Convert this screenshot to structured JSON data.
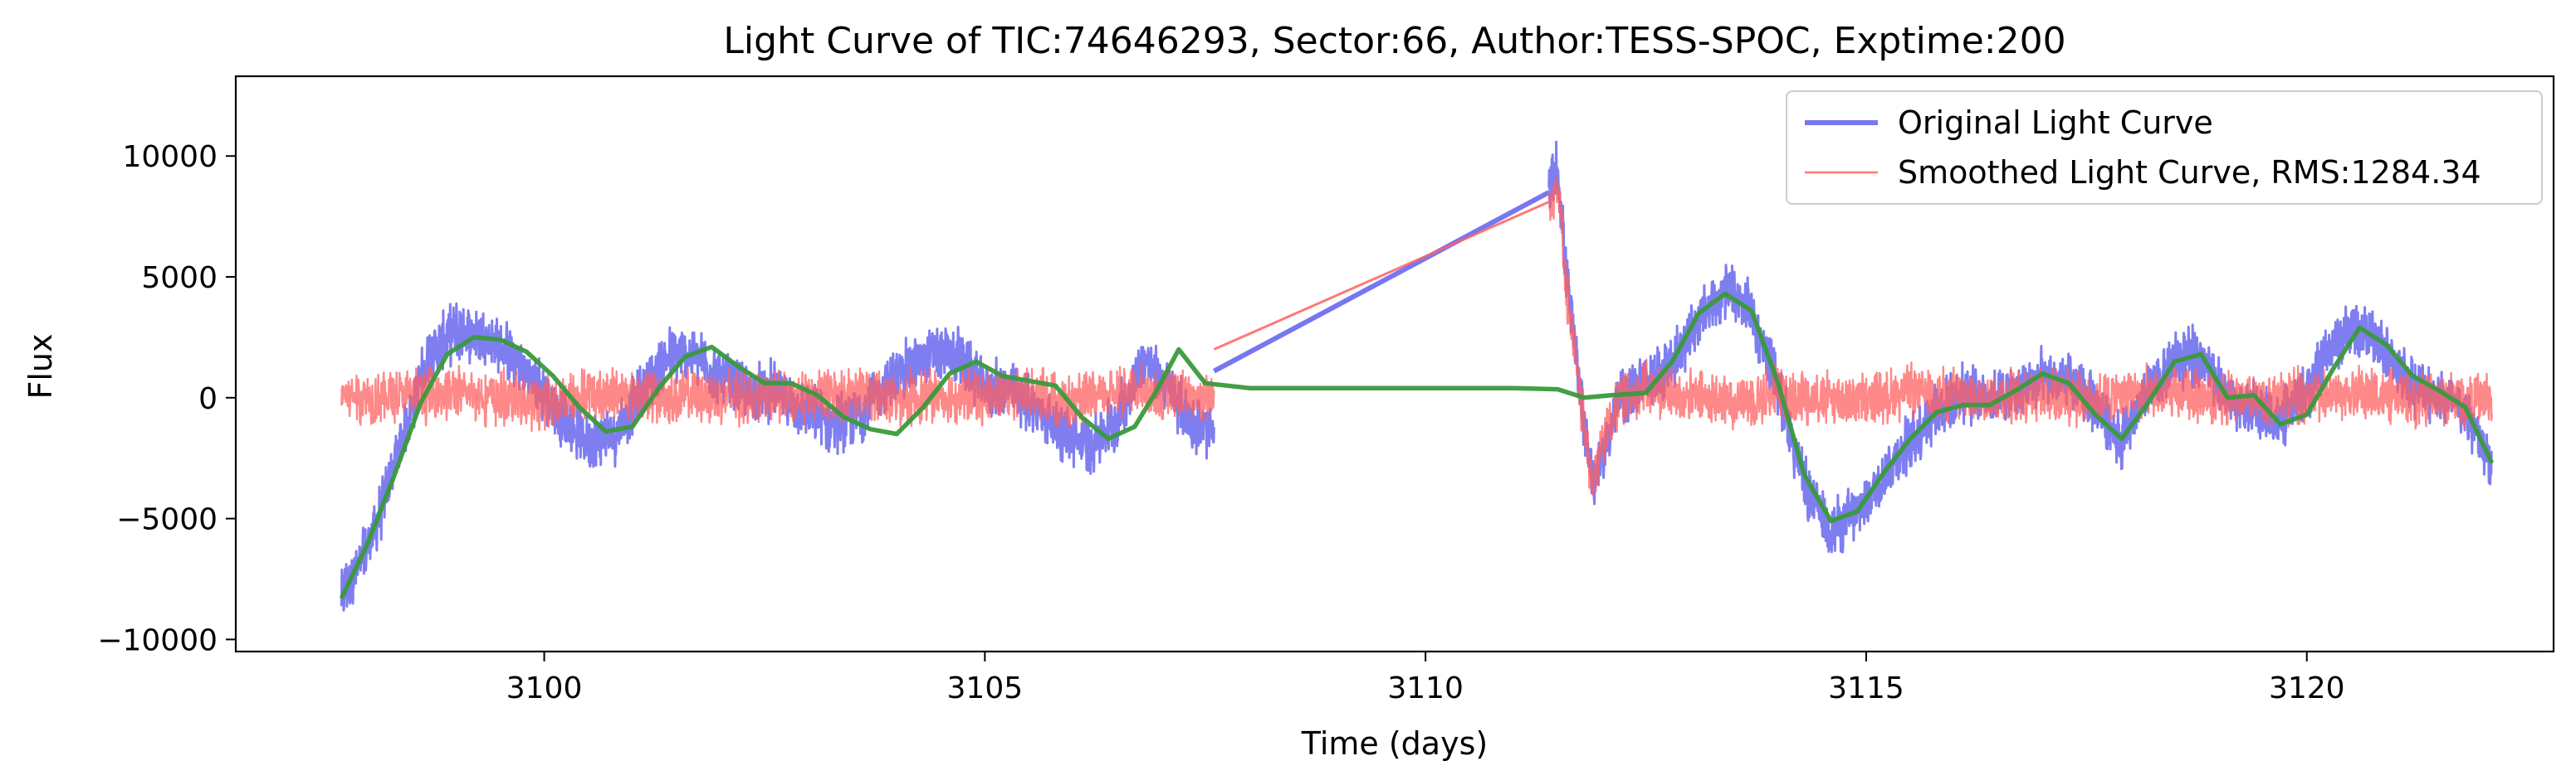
{
  "chart_data": {
    "type": "line",
    "title": "Light Curve of TIC:74646293, Sector:66, Author:TESS-SPOC, Exptime:200",
    "xlabel": "Time (days)",
    "ylabel": "Flux",
    "xlim": [
      3096.5,
      3122.8
    ],
    "ylim": [
      -10500,
      13300
    ],
    "x_ticks": [
      3100,
      3105,
      3110,
      3115,
      3120
    ],
    "x_tick_labels": [
      "3100",
      "3105",
      "3110",
      "3115",
      "3120"
    ],
    "y_ticks": [
      -10000,
      -5000,
      0,
      5000,
      10000
    ],
    "y_tick_labels": [
      "−10000",
      "−5000",
      "0",
      "5000",
      "10000"
    ],
    "grid": false,
    "legend_position": "top-right",
    "series": [
      {
        "name": "Original Light Curve",
        "color": "#7070f0",
        "style": "noisy",
        "noise": 1400,
        "x": [
          3097.7,
          3097.9,
          3098.1,
          3098.4,
          3098.7,
          3099.0,
          3099.3,
          3099.6,
          3099.9,
          3100.2,
          3100.5,
          3100.8,
          3101.1,
          3101.4,
          3101.7,
          3102.0,
          3102.3,
          3102.6,
          3102.9,
          3103.2,
          3103.5,
          3103.8,
          3104.1,
          3104.4,
          3104.7,
          3105.0,
          3105.3,
          3105.6,
          3105.9,
          3106.2,
          3106.5,
          3106.8,
          3107.1,
          3107.4,
          3107.6,
          null,
          3111.4,
          3111.5,
          3111.6,
          3111.7,
          3111.8,
          3111.9,
          3112.0,
          3112.2,
          3112.5,
          3112.8,
          3113.1,
          3113.4,
          3113.7,
          3114.0,
          3114.3,
          3114.6,
          3114.9,
          3115.2,
          3115.5,
          3115.8,
          3116.1,
          3116.4,
          3116.7,
          3117.0,
          3117.3,
          3117.6,
          3117.9,
          3118.2,
          3118.5,
          3118.8,
          3119.1,
          3119.4,
          3119.7,
          3120.0,
          3120.3,
          3120.6,
          3120.9,
          3121.2,
          3121.5,
          3121.8,
          3122.1
        ],
        "y": [
          -8200,
          -7000,
          -5200,
          -1500,
          1800,
          2800,
          2600,
          1800,
          600,
          -800,
          -1800,
          -1500,
          200,
          1700,
          1800,
          800,
          200,
          300,
          -400,
          -1000,
          -900,
          200,
          1200,
          1800,
          1700,
          400,
          300,
          -500,
          -1500,
          -2000,
          -900,
          1600,
          300,
          -1200,
          -1500,
          null,
          8500,
          9500,
          5000,
          2000,
          -1000,
          -3500,
          -2500,
          0,
          600,
          1500,
          3200,
          4400,
          3500,
          500,
          -3600,
          -5400,
          -4800,
          -3200,
          -1800,
          -500,
          200,
          0,
          300,
          800,
          600,
          -300,
          -1800,
          200,
          1500,
          1700,
          0,
          -500,
          -1000,
          300,
          2200,
          3000,
          1900,
          500,
          100,
          -600,
          -2900
        ]
      },
      {
        "name": "Smoothed Light Curve, RMS:1284.34",
        "color": "#ff6060",
        "style": "noisy",
        "noise": 1300,
        "x": [
          3097.7,
          3098.0,
          3098.5,
          3099.0,
          3099.5,
          3100.0,
          3100.5,
          3101.0,
          3101.5,
          3102.0,
          3102.5,
          3103.0,
          3103.5,
          3104.0,
          3104.5,
          3105.0,
          3105.5,
          3106.0,
          3106.5,
          3107.0,
          3107.6,
          null,
          3111.4,
          3111.5,
          3111.6,
          3111.7,
          3111.8,
          3111.9,
          3112.0,
          3112.2,
          3112.5,
          3113.0,
          3113.5,
          3114.0,
          3114.5,
          3115.0,
          3115.5,
          3116.0,
          3116.5,
          3117.0,
          3117.5,
          3118.0,
          3118.5,
          3119.0,
          3119.5,
          3120.0,
          3120.5,
          3121.0,
          3121.5,
          3122.1
        ],
        "y": [
          200,
          0,
          100,
          200,
          0,
          -200,
          100,
          200,
          0,
          100,
          -100,
          0,
          200,
          0,
          100,
          0,
          200,
          -300,
          300,
          200,
          0,
          null,
          8100,
          9000,
          4500,
          1500,
          -1200,
          -3500,
          -2000,
          0,
          300,
          0,
          -200,
          200,
          0,
          -100,
          300,
          100,
          0,
          200,
          -100,
          200,
          100,
          0,
          -200,
          100,
          200,
          0,
          -100,
          0
        ]
      },
      {
        "name": "",
        "color": "#3a9a3a",
        "style": "smooth",
        "x": [
          3097.7,
          3098.0,
          3098.3,
          3098.6,
          3098.9,
          3099.2,
          3099.5,
          3099.8,
          3100.1,
          3100.4,
          3100.7,
          3101.0,
          3101.3,
          3101.6,
          3101.9,
          3102.2,
          3102.5,
          3102.8,
          3103.1,
          3103.4,
          3103.7,
          3104.0,
          3104.3,
          3104.6,
          3104.9,
          3105.2,
          3105.5,
          3105.8,
          3106.1,
          3106.4,
          3106.7,
          3106.95,
          3107.2,
          3107.5,
          3108.0,
          3109.0,
          3110.0,
          3111.0,
          3111.5,
          3111.8,
          3112.1,
          3112.5,
          3112.8,
          3113.1,
          3113.4,
          3113.7,
          3114.0,
          3114.3,
          3114.6,
          3114.9,
          3115.2,
          3115.5,
          3115.8,
          3116.1,
          3116.4,
          3116.7,
          3117.0,
          3117.3,
          3117.6,
          3117.9,
          3118.2,
          3118.5,
          3118.8,
          3119.1,
          3119.4,
          3119.7,
          3120.0,
          3120.3,
          3120.6,
          3120.9,
          3121.2,
          3121.5,
          3121.8,
          3122.1
        ],
        "y": [
          -8300,
          -6000,
          -3200,
          -200,
          1800,
          2500,
          2400,
          1900,
          900,
          -400,
          -1400,
          -1200,
          400,
          1700,
          2100,
          1300,
          600,
          600,
          100,
          -800,
          -1300,
          -1500,
          -400,
          1000,
          1500,
          900,
          700,
          500,
          -800,
          -1700,
          -1200,
          300,
          2000,
          600,
          400,
          400,
          400,
          400,
          350,
          0,
          100,
          200,
          1500,
          3500,
          4300,
          3600,
          600,
          -3200,
          -5100,
          -4700,
          -3100,
          -1700,
          -600,
          -300,
          -300,
          300,
          1000,
          600,
          -700,
          -1700,
          -200,
          1500,
          1800,
          0,
          100,
          -1100,
          -700,
          1200,
          2900,
          2200,
          900,
          300,
          -400,
          -2700
        ]
      }
    ]
  }
}
